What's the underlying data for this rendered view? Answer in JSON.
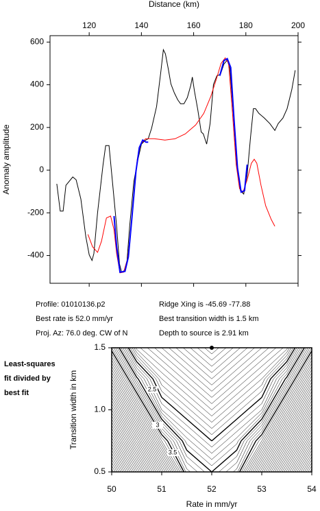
{
  "chart_data": [
    {
      "type": "line",
      "xlabel": "Distance (km)",
      "ylabel": "Anomaly amplitude",
      "xlim": [
        105,
        200
      ],
      "ylim": [
        -530,
        630
      ],
      "xticks": [
        120,
        140,
        160,
        180,
        200
      ],
      "yticks": [
        -400,
        -200,
        0,
        200,
        400,
        600
      ],
      "series": [
        {
          "color": "#000000",
          "x": [
            107.6,
            108.9,
            110.0,
            111.1,
            113.7,
            115.0,
            116.8,
            118.7,
            120.0,
            121.1,
            121.8,
            123.2,
            125.3,
            126.3,
            127.6,
            128.9,
            130.5,
            131.6,
            132.4,
            133.4,
            134.5,
            135.5,
            137.1,
            138.7,
            140.0,
            141.3,
            142.6,
            143.9,
            145.8,
            147.4,
            148.4,
            149.2,
            150.3,
            151.3,
            152.6,
            153.9,
            155.0,
            156.3,
            157.6,
            158.9,
            159.5,
            160.3,
            161.6,
            162.9,
            163.7,
            165.0,
            166.3,
            167.6,
            168.9,
            170.3,
            171.6,
            172.9,
            173.9,
            175.3,
            176.6,
            177.9,
            179.2,
            180.5,
            181.8,
            182.9,
            183.7,
            185.0,
            187.1,
            189.2,
            191.1,
            192.4,
            194.2,
            195.8,
            197.6,
            198.9
          ],
          "values": [
            -64,
            -192,
            -192,
            -71,
            -32,
            -45,
            -135,
            -311,
            -397,
            -423,
            -391,
            -199,
            26,
            115,
            115,
            -54,
            -263,
            -439,
            -478,
            -471,
            -423,
            -263,
            -54,
            51,
            122,
            138,
            147,
            196,
            298,
            458,
            564,
            545,
            474,
            404,
            362,
            330,
            311,
            311,
            340,
            397,
            436,
            372,
            282,
            179,
            170,
            122,
            218,
            401,
            442,
            449,
            497,
            516,
            474,
            250,
            10,
            -96,
            -112,
            -22,
            154,
            288,
            288,
            266,
            244,
            218,
            186,
            218,
            244,
            288,
            378,
            468
          ]
        },
        {
          "color": "#ff0000",
          "x": [
            119.5,
            121.3,
            123.2,
            124.7,
            126.6,
            128.2,
            129.5,
            130.5,
            131.8,
            133.2,
            134.7,
            136.1,
            137.4,
            138.4,
            139.7,
            141.6,
            145.0,
            149.0,
            152.9,
            156.8,
            160.8,
            163.9,
            166.6,
            168.7,
            170.5,
            172.1,
            173.4,
            174.7,
            176.3,
            177.6,
            178.9,
            180.5,
            182.1,
            183.2,
            184.2,
            185.8,
            187.6,
            189.7,
            191.1
          ],
          "values": [
            -301,
            -359,
            -385,
            -333,
            -224,
            -215,
            -279,
            -391,
            -481,
            -478,
            -417,
            -263,
            -71,
            51,
            122,
            147,
            147,
            141,
            147,
            170,
            212,
            266,
            346,
            426,
            500,
            526,
            500,
            298,
            26,
            -87,
            -103,
            -45,
            32,
            51,
            32,
            -71,
            -167,
            -231,
            -263
          ]
        },
        {
          "color": "#0000ff",
          "x": [
            129.5,
            130.5,
            131.8,
            133.7,
            135.0,
            136.3,
            137.9,
            139.2,
            140.5,
            141.8,
            142.6,
            null,
            170.0,
            171.6,
            172.9,
            174.2,
            175.5,
            176.8,
            178.2,
            179.5,
            180.5
          ],
          "values": [
            -215,
            -359,
            -478,
            -474,
            -407,
            -231,
            -6,
            106,
            141,
            131,
            131,
            null,
            442,
            513,
            522,
            481,
            234,
            10,
            -103,
            -96,
            26
          ]
        }
      ],
      "annotations": [
        "Profile: 01010136.p2",
        "Ridge Xing is -45.69 -77.88",
        "Best rate is 52.0 mm/yr",
        "Best transition width is 1.5 km",
        "Proj. Az: 76.0 deg. CW of N",
        "Depth to source is   2.91 km"
      ]
    },
    {
      "type": "contour",
      "title": [
        "Least-squares",
        "fit divided by",
        "best fit"
      ],
      "xlabel": "Rate in mm/yr",
      "ylabel": "Transition width in km",
      "xlim": [
        50,
        54
      ],
      "ylim": [
        0.5,
        1.5
      ],
      "xticks": [
        50,
        51,
        52,
        53,
        54
      ],
      "yticks": [
        0.5,
        {
          "value": 1.0,
          "label": "1.0"
        },
        1.5
      ],
      "x": [
        50,
        50.5,
        51,
        51.5,
        52,
        52.5,
        53,
        53.5,
        54
      ],
      "y": [
        0.5,
        0.75,
        1.0,
        1.25,
        1.5
      ],
      "z": [
        [
          7.4,
          6.05,
          4.7,
          3.35,
          3,
          3.35,
          4.7,
          6.05,
          7.4
        ],
        [
          6.4,
          5.05,
          3.7,
          2.85,
          2.5,
          2.85,
          3.7,
          5.05,
          6.4
        ],
        [
          5.4,
          4.05,
          2.7,
          2.35,
          2,
          2.35,
          2.7,
          4.05,
          5.4
        ],
        [
          4.4,
          3.05,
          2.2,
          1.85,
          1.5,
          1.85,
          2.2,
          3.05,
          4.4
        ],
        [
          3.4,
          2.05,
          1.7,
          1.35,
          1,
          1.35,
          1.7,
          2.05,
          3.4
        ]
      ],
      "contour_interval": 0.1,
      "labeled_levels": [
        2.5,
        3,
        3.5
      ],
      "best_fit": {
        "x": 52,
        "y": 1.5
      }
    }
  ]
}
